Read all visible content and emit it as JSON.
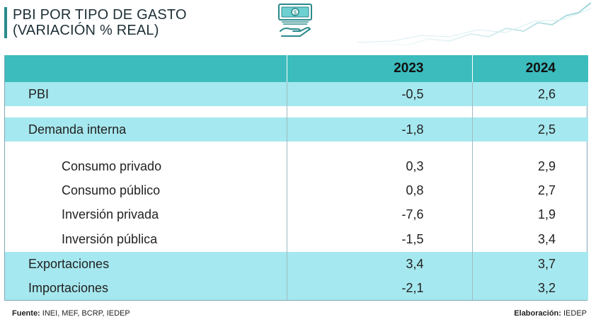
{
  "title": {
    "line1": "PBI POR TIPO DE GASTO",
    "line2": "(VARIACIÓN % REAL)"
  },
  "icons": {
    "header_icon": "money-hand-icon"
  },
  "colors": {
    "accent": "#2a8a8c",
    "header_bg": "#3cbcbd",
    "highlight_row": "#a6e8ef"
  },
  "table": {
    "columns": [
      "",
      "2023",
      "2024"
    ],
    "rows": [
      {
        "label": "PBI",
        "v2023": "-0,5",
        "v2024": "2,6",
        "highlight": true,
        "indent": false
      },
      {
        "label": "Demanda interna",
        "v2023": "-1,8",
        "v2024": "2,5",
        "highlight": true,
        "indent": false
      },
      {
        "label": "Consumo privado",
        "v2023": "0,3",
        "v2024": "2,9",
        "highlight": false,
        "indent": true
      },
      {
        "label": "Consumo público",
        "v2023": "0,8",
        "v2024": "2,7",
        "highlight": false,
        "indent": true
      },
      {
        "label": "Inversión privada",
        "v2023": "-7,6",
        "v2024": "1,9",
        "highlight": false,
        "indent": true
      },
      {
        "label": "Inversión pública",
        "v2023": "-1,5",
        "v2024": "3,4",
        "highlight": false,
        "indent": true
      },
      {
        "label": "Exportaciones",
        "v2023": "3,4",
        "v2024": "3,7",
        "highlight": true,
        "indent": false
      },
      {
        "label": "Importaciones",
        "v2023": "-2,1",
        "v2024": "3,2",
        "highlight": true,
        "indent": false
      }
    ]
  },
  "footer": {
    "source_label": "Fuente:",
    "source_value": "INEI, MEF, BCRP, IEDEP",
    "credit_label": "Elaboración:",
    "credit_value": "IEDEP"
  }
}
